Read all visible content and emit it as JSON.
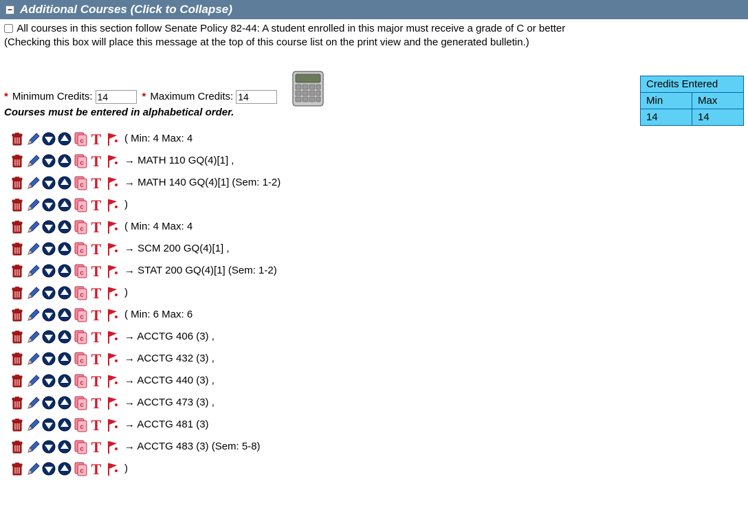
{
  "header": {
    "title": "Additional Courses (Click to Collapse)",
    "collapse_symbol": "−",
    "bg_color": "#5d7d9a",
    "text_color": "#ffffff"
  },
  "policy": {
    "line1": "All courses in this section follow Senate Policy 82-44: A student enrolled in this major must receive a grade of C or better",
    "line2": "(Checking this box will place this message at the top of this course list on the print view and the generated bulletin.)",
    "checked": false
  },
  "credits": {
    "min_label": "Minimum Credits:",
    "min_value": "14",
    "max_label": "Maximum Credits:",
    "max_value": "14",
    "required_marker": "*"
  },
  "order_note": "Courses must be entered in alphabetical order.",
  "credits_table": {
    "header": "Credits Entered",
    "min_label": "Min",
    "max_label": "Max",
    "min_value": "14",
    "max_value": "14",
    "cell_bg": "#5fd0f5",
    "border_color": "#0066aa"
  },
  "icons": {
    "trash_color": "#b31b1b",
    "pencil_color": "#3a5fb0",
    "down_bg": "#0b2b66",
    "up_bg": "#0b2b66",
    "arrow_fill": "#ffffff",
    "copy_fill": "#f08ca0",
    "copy_stroke": "#c0304a",
    "t_color": "#d11b2a",
    "flag_color": "#d11b2a"
  },
  "rows": [
    {
      "text": "( Min: 4 Max: 4"
    },
    {
      "text": "→ MATH 110 GQ(4)[1] ,"
    },
    {
      "text": "→ MATH 140 GQ(4)[1] (Sem: 1-2)"
    },
    {
      "text": ")"
    },
    {
      "text": "( Min: 4 Max: 4"
    },
    {
      "text": "→ SCM 200 GQ(4)[1] ,"
    },
    {
      "text": "→ STAT 200 GQ(4)[1] (Sem: 1-2)"
    },
    {
      "text": ")"
    },
    {
      "text": "( Min: 6 Max: 6"
    },
    {
      "text": "→ ACCTG 406 (3) ,"
    },
    {
      "text": "→ ACCTG 432 (3) ,"
    },
    {
      "text": "→ ACCTG 440 (3) ,"
    },
    {
      "text": "→ ACCTG 473 (3) ,"
    },
    {
      "text": "→ ACCTG 481 (3)"
    },
    {
      "text": "→ ACCTG 483 (3) (Sem: 5-8)"
    },
    {
      "text": ")"
    }
  ]
}
